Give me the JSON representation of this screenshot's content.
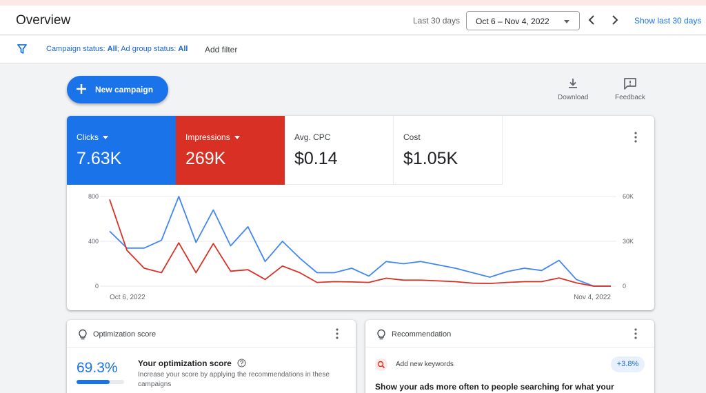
{
  "header": {
    "title": "Overview",
    "range_label": "Last 30 days",
    "date_range": "Oct 6 – Nov 4, 2022",
    "show_last": "Show last 30 days"
  },
  "filters": {
    "campaign_status_label": "Campaign status: ",
    "campaign_status_value": "All",
    "ad_group_status_label": "; Ad group status: ",
    "ad_group_status_value": "All",
    "add_filter": "Add filter"
  },
  "actions": {
    "new_campaign": "New campaign",
    "download": "Download",
    "feedback": "Feedback"
  },
  "metrics": [
    {
      "label": "Clicks",
      "value": "7.63K",
      "color": "#1a73e8"
    },
    {
      "label": "Impressions",
      "value": "269K",
      "color": "#d93025"
    },
    {
      "label": "Avg. CPC",
      "value": "$0.14"
    },
    {
      "label": "Cost",
      "value": "$1.05K"
    }
  ],
  "chart_data": {
    "type": "line",
    "x_start_label": "Oct 6, 2022",
    "x_end_label": "Nov 4, 2022",
    "y_left": {
      "ticks": [
        "0",
        "400",
        "800"
      ],
      "min": 0,
      "max": 800
    },
    "y_right": {
      "ticks": [
        "0",
        "30K",
        "60K"
      ],
      "min": 0,
      "max": 60000
    },
    "grid": true,
    "series": [
      {
        "color": "#4285f4",
        "axis": "left",
        "values": [
          490,
          340,
          340,
          410,
          800,
          390,
          680,
          360,
          530,
          220,
          400,
          250,
          120,
          120,
          160,
          90,
          220,
          200,
          220,
          190,
          160,
          120,
          80,
          130,
          160,
          140,
          230,
          60,
          0,
          0
        ]
      },
      {
        "color": "#d93025",
        "axis": "right",
        "values": [
          58000,
          24000,
          12000,
          9000,
          29000,
          9000,
          28500,
          10000,
          11000,
          4500,
          13500,
          9000,
          2500,
          3000,
          2800,
          2500,
          5300,
          4000,
          4000,
          3500,
          3000,
          2000,
          1800,
          2500,
          3000,
          3000,
          5500,
          2200,
          0,
          0
        ]
      }
    ]
  },
  "optimization": {
    "title": "Optimization score",
    "score": "69.3%",
    "score_fraction": 0.693,
    "heading": "Your optimization score",
    "description": "Increase your score by applying the recommendations in these campaigns"
  },
  "recommendation": {
    "title": "Recommendation",
    "keyword_label": "Add new keywords",
    "badge": "+3.8%",
    "text": "Show your ads more often to people searching for what your"
  }
}
